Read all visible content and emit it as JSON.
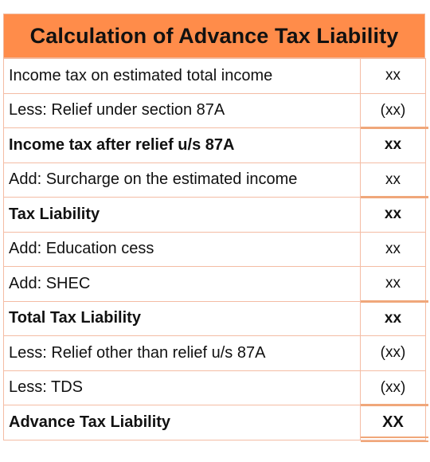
{
  "title": "Calculation of Advance Tax Liability",
  "colors": {
    "header_bg": "#ff8c4a",
    "border": "#f4bca4",
    "underline": "#f0a77a"
  },
  "rows": [
    {
      "label": "Income tax on estimated total income",
      "amount": "xx",
      "bold": false
    },
    {
      "label": "Less: Relief under section 87A",
      "amount": "(xx)",
      "bold": false
    },
    {
      "label": "Income tax after relief u/s 87A",
      "amount": "xx",
      "bold": true
    },
    {
      "label": "Add: Surcharge on the estimated income",
      "amount": "xx",
      "bold": false
    },
    {
      "label": "Tax Liability",
      "amount": "xx",
      "bold": true
    },
    {
      "label": "Add: Education cess",
      "amount": "xx",
      "bold": false
    },
    {
      "label": "Add: SHEC",
      "amount": "xx",
      "bold": false
    },
    {
      "label": "Total Tax Liability",
      "amount": "xx",
      "bold": true
    },
    {
      "label": "Less: Relief other than relief u/s 87A",
      "amount": "(xx)",
      "bold": false
    },
    {
      "label": "Less: TDS",
      "amount": "(xx)",
      "bold": false
    },
    {
      "label": "Advance Tax Liability",
      "amount": "XX",
      "bold": true
    }
  ]
}
